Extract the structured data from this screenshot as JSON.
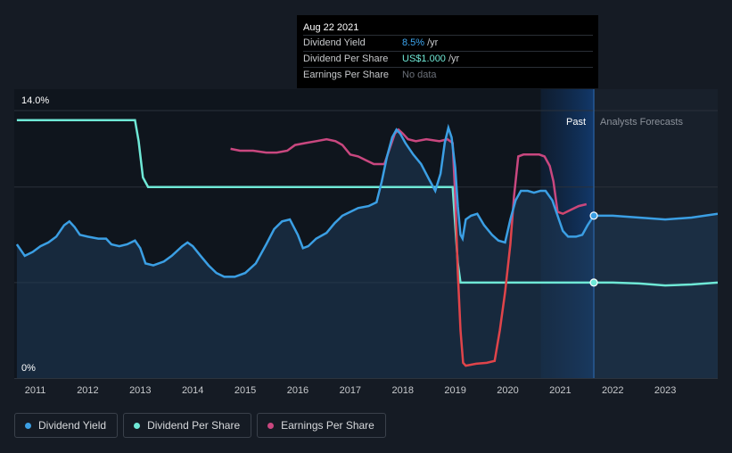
{
  "tooltip": {
    "date": "Aug 22 2021",
    "rows": [
      {
        "label": "Dividend Yield",
        "value": "8.5%",
        "unit": "/yr"
      },
      {
        "label": "Dividend Per Share",
        "value": "US$1.000",
        "unit": "/yr"
      },
      {
        "label": "Earnings Per Share",
        "value": "No data",
        "unit": ""
      }
    ]
  },
  "legend": [
    {
      "label": "Dividend Yield",
      "color": "#3b9fe4"
    },
    {
      "label": "Dividend Per Share",
      "color": "#6fe8d6"
    },
    {
      "label": "Earnings Per Share",
      "color": "#c9477f"
    }
  ],
  "colors": {
    "yield": "#3b9fe4",
    "dps": "#6fe8d6",
    "eps_positive": "#c9477f",
    "eps_negative": "#e0444a"
  },
  "chart_data": {
    "type": "line",
    "y_labels": [
      "14.0%",
      "0%"
    ],
    "ylim": [
      0,
      14
    ],
    "xlim": [
      2010.6,
      2024.0
    ],
    "x_ticks": [
      2011,
      2012,
      2013,
      2014,
      2015,
      2016,
      2017,
      2018,
      2019,
      2020,
      2021,
      2022,
      2023
    ],
    "past_label": "Past",
    "forecast_label": "Analysts Forecasts",
    "cursor_x": 2021.64,
    "forecast_region": [
      2020.63,
      2021.64
    ],
    "series": [
      {
        "name": "Dividend Yield",
        "key": "yield",
        "unit": "%",
        "points": [
          [
            2010.65,
            7.0
          ],
          [
            2010.8,
            6.4
          ],
          [
            2010.95,
            6.6
          ],
          [
            2011.1,
            6.9
          ],
          [
            2011.25,
            7.1
          ],
          [
            2011.4,
            7.4
          ],
          [
            2011.55,
            8.0
          ],
          [
            2011.65,
            8.2
          ],
          [
            2011.75,
            7.9
          ],
          [
            2011.85,
            7.5
          ],
          [
            2012.0,
            7.4
          ],
          [
            2012.2,
            7.3
          ],
          [
            2012.35,
            7.3
          ],
          [
            2012.45,
            7.0
          ],
          [
            2012.6,
            6.9
          ],
          [
            2012.75,
            7.0
          ],
          [
            2012.9,
            7.2
          ],
          [
            2013.0,
            6.8
          ],
          [
            2013.1,
            6.0
          ],
          [
            2013.25,
            5.9
          ],
          [
            2013.45,
            6.1
          ],
          [
            2013.6,
            6.4
          ],
          [
            2013.8,
            6.9
          ],
          [
            2013.9,
            7.1
          ],
          [
            2014.0,
            6.9
          ],
          [
            2014.15,
            6.4
          ],
          [
            2014.3,
            5.9
          ],
          [
            2014.45,
            5.5
          ],
          [
            2014.6,
            5.3
          ],
          [
            2014.8,
            5.3
          ],
          [
            2015.0,
            5.5
          ],
          [
            2015.2,
            6.0
          ],
          [
            2015.4,
            7.0
          ],
          [
            2015.55,
            7.8
          ],
          [
            2015.7,
            8.2
          ],
          [
            2015.85,
            8.3
          ],
          [
            2016.0,
            7.5
          ],
          [
            2016.1,
            6.8
          ],
          [
            2016.2,
            6.9
          ],
          [
            2016.35,
            7.3
          ],
          [
            2016.55,
            7.6
          ],
          [
            2016.7,
            8.1
          ],
          [
            2016.85,
            8.5
          ],
          [
            2017.0,
            8.7
          ],
          [
            2017.15,
            8.9
          ],
          [
            2017.35,
            9.0
          ],
          [
            2017.5,
            9.2
          ],
          [
            2017.6,
            10.3
          ],
          [
            2017.7,
            11.6
          ],
          [
            2017.8,
            12.6
          ],
          [
            2017.88,
            13.0
          ],
          [
            2017.95,
            12.8
          ],
          [
            2018.05,
            12.3
          ],
          [
            2018.2,
            11.7
          ],
          [
            2018.35,
            11.2
          ],
          [
            2018.5,
            10.4
          ],
          [
            2018.62,
            9.8
          ],
          [
            2018.72,
            10.7
          ],
          [
            2018.8,
            12.3
          ],
          [
            2018.87,
            13.1
          ],
          [
            2018.93,
            12.6
          ],
          [
            2019.0,
            11.0
          ],
          [
            2019.05,
            9.0
          ],
          [
            2019.1,
            7.5
          ],
          [
            2019.14,
            7.3
          ],
          [
            2019.2,
            8.3
          ],
          [
            2019.3,
            8.5
          ],
          [
            2019.42,
            8.6
          ],
          [
            2019.55,
            8.0
          ],
          [
            2019.7,
            7.5
          ],
          [
            2019.82,
            7.2
          ],
          [
            2019.95,
            7.1
          ],
          [
            2020.05,
            8.3
          ],
          [
            2020.15,
            9.3
          ],
          [
            2020.25,
            9.8
          ],
          [
            2020.38,
            9.8
          ],
          [
            2020.5,
            9.7
          ],
          [
            2020.62,
            9.8
          ],
          [
            2020.72,
            9.8
          ],
          [
            2020.85,
            9.3
          ],
          [
            2020.95,
            8.5
          ],
          [
            2021.05,
            7.7
          ],
          [
            2021.15,
            7.4
          ],
          [
            2021.3,
            7.4
          ],
          [
            2021.42,
            7.5
          ],
          [
            2021.52,
            8.0
          ],
          [
            2021.64,
            8.5
          ],
          [
            2022.0,
            8.5
          ],
          [
            2022.5,
            8.4
          ],
          [
            2023.0,
            8.3
          ],
          [
            2023.5,
            8.4
          ],
          [
            2024.0,
            8.6
          ]
        ]
      },
      {
        "name": "Dividend Per Share",
        "key": "dps",
        "unit": "US$",
        "points": [
          [
            2010.65,
            13.5
          ],
          [
            2012.5,
            13.5
          ],
          [
            2012.9,
            13.5
          ],
          [
            2012.97,
            12.4
          ],
          [
            2013.05,
            10.5
          ],
          [
            2013.15,
            10.0
          ],
          [
            2014.0,
            10.0
          ],
          [
            2015.0,
            10.0
          ],
          [
            2016.0,
            10.0
          ],
          [
            2017.0,
            10.0
          ],
          [
            2018.0,
            10.0
          ],
          [
            2018.95,
            10.0
          ],
          [
            2019.0,
            8.0
          ],
          [
            2019.05,
            6.0
          ],
          [
            2019.1,
            5.0
          ],
          [
            2020.0,
            5.0
          ],
          [
            2021.0,
            5.0
          ],
          [
            2021.64,
            5.0
          ],
          [
            2022.0,
            5.0
          ],
          [
            2022.5,
            4.95
          ],
          [
            2023.0,
            4.85
          ],
          [
            2023.5,
            4.9
          ],
          [
            2024.0,
            5.0
          ]
        ]
      },
      {
        "name": "Earnings Per Share",
        "key": "eps",
        "unit": "US$",
        "points": [
          [
            2014.72,
            12.0
          ],
          [
            2014.9,
            11.9
          ],
          [
            2015.15,
            11.9
          ],
          [
            2015.4,
            11.8
          ],
          [
            2015.6,
            11.8
          ],
          [
            2015.8,
            11.9
          ],
          [
            2015.95,
            12.2
          ],
          [
            2016.15,
            12.3
          ],
          [
            2016.35,
            12.4
          ],
          [
            2016.55,
            12.5
          ],
          [
            2016.72,
            12.4
          ],
          [
            2016.85,
            12.2
          ],
          [
            2017.0,
            11.7
          ],
          [
            2017.15,
            11.6
          ],
          [
            2017.3,
            11.4
          ],
          [
            2017.45,
            11.2
          ],
          [
            2017.55,
            11.2
          ],
          [
            2017.65,
            11.2
          ],
          [
            2017.75,
            12.0
          ],
          [
            2017.85,
            12.8
          ],
          [
            2017.92,
            13.0
          ],
          [
            2018.0,
            12.8
          ],
          [
            2018.1,
            12.5
          ],
          [
            2018.25,
            12.4
          ],
          [
            2018.45,
            12.5
          ],
          [
            2018.7,
            12.4
          ],
          [
            2018.85,
            12.5
          ],
          [
            2018.95,
            12.3
          ],
          [
            2019.0,
            9.5
          ],
          [
            2019.05,
            5.5
          ],
          [
            2019.1,
            2.5
          ],
          [
            2019.15,
            0.8
          ],
          [
            2019.2,
            0.65
          ],
          [
            2019.4,
            0.75
          ],
          [
            2019.6,
            0.8
          ],
          [
            2019.75,
            0.9
          ],
          [
            2019.85,
            2.5
          ],
          [
            2019.95,
            4.5
          ],
          [
            2020.05,
            7.0
          ],
          [
            2020.12,
            9.5
          ],
          [
            2020.2,
            11.6
          ],
          [
            2020.3,
            11.7
          ],
          [
            2020.45,
            11.7
          ],
          [
            2020.6,
            11.7
          ],
          [
            2020.7,
            11.6
          ],
          [
            2020.8,
            11.1
          ],
          [
            2020.87,
            10.3
          ],
          [
            2020.95,
            8.7
          ],
          [
            2021.05,
            8.6
          ],
          [
            2021.2,
            8.8
          ],
          [
            2021.35,
            9.0
          ],
          [
            2021.5,
            9.1
          ]
        ]
      }
    ]
  }
}
